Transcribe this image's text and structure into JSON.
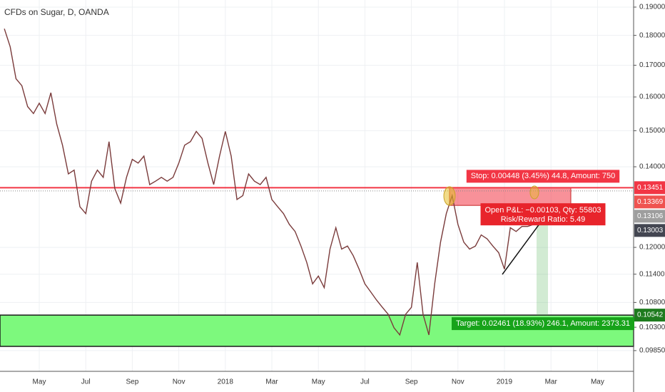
{
  "chart_data": {
    "type": "line",
    "title": "CFDs on Sugar, D, OANDA",
    "categories": [
      null,
      null,
      null,
      null,
      null,
      null,
      "May",
      null,
      null,
      null,
      null,
      null,
      null,
      null,
      "Jul",
      null,
      null,
      null,
      null,
      null,
      null,
      null,
      "Sep",
      null,
      null,
      null,
      null,
      null,
      null,
      null,
      "Nov",
      null,
      null,
      null,
      null,
      null,
      null,
      null,
      "2018",
      null,
      null,
      null,
      null,
      null,
      null,
      null,
      "Mar",
      null,
      null,
      null,
      null,
      null,
      null,
      null,
      "May",
      null,
      null,
      null,
      null,
      null,
      null,
      null,
      "Jul",
      null,
      null,
      null,
      null,
      null,
      null,
      null,
      "Sep",
      null,
      null,
      null,
      null,
      null,
      null,
      null,
      "Nov",
      null,
      null,
      null,
      null,
      null,
      null,
      null,
      "2019",
      null,
      null,
      null,
      null,
      null,
      null,
      null,
      "Mar",
      null,
      null,
      null,
      null,
      null,
      null,
      null,
      "May"
    ],
    "series": [
      {
        "color": "#7a3b3b",
        "values": [
          0.1823,
          0.1761,
          0.1657,
          0.1635,
          0.1571,
          0.155,
          0.1581,
          0.155,
          0.1613,
          0.1519,
          0.1459,
          0.1381,
          0.1391,
          0.1297,
          0.128,
          0.1362,
          0.1391,
          0.1372,
          0.1469,
          0.1343,
          0.1306,
          0.1372,
          0.142,
          0.141,
          0.1429,
          0.1353,
          0.1362,
          0.1372,
          0.1362,
          0.1372,
          0.141,
          0.1459,
          0.1469,
          0.1498,
          0.1478,
          0.141,
          0.1353,
          0.1429,
          0.1498,
          0.1429,
          0.1315,
          0.1325,
          0.1381,
          0.1362,
          0.1353,
          0.1372,
          0.1315,
          0.1297,
          0.128,
          0.1254,
          0.1237,
          0.1203,
          0.1166,
          0.1119,
          0.1136,
          0.1111,
          0.1196,
          0.1246,
          0.1196,
          0.1203,
          0.1181,
          0.1151,
          0.1119,
          0.1102,
          0.1085,
          0.107,
          0.1056,
          0.1029,
          0.1015,
          0.1056,
          0.107,
          0.1166,
          0.1056,
          0.1015,
          0.1119,
          0.1212,
          0.128,
          0.1325,
          0.1254,
          0.1212,
          0.1196,
          0.1203,
          0.1229,
          0.122,
          0.1203,
          0.1188,
          0.1151,
          0.1246,
          0.1237,
          0.1249,
          0.1249,
          0.1254,
          null,
          null,
          null,
          null,
          null,
          null,
          null,
          null,
          null,
          null,
          null
        ]
      }
    ],
    "ylim": [
      0.0948,
      0.1926
    ],
    "log_scale": true,
    "grid": true,
    "yticks": [
      {
        "value": 0.19,
        "label": "0.19000"
      },
      {
        "value": 0.18,
        "label": "0.18000"
      },
      {
        "value": 0.17,
        "label": "0.17000"
      },
      {
        "value": 0.16,
        "label": "0.16000"
      },
      {
        "value": 0.15,
        "label": "0.15000"
      },
      {
        "value": 0.14,
        "label": "0.14000"
      },
      {
        "value": 0.12,
        "label": "0.12000"
      },
      {
        "value": 0.114,
        "label": "0.11400"
      },
      {
        "value": 0.108,
        "label": "0.10800"
      },
      {
        "value": 0.103,
        "label": "0.10300"
      },
      {
        "value": 0.0985,
        "label": "0.09850"
      }
    ],
    "levels": [
      {
        "value": 0.13451,
        "color": "#f23645"
      },
      {
        "value": 0.13369,
        "color": "#ef5350"
      },
      {
        "value": 0.13106,
        "color": "#9e9e9e"
      },
      {
        "value": 0.13003,
        "color": "#434651"
      },
      {
        "value": 0.10542,
        "color": "#1e7b1e"
      }
    ],
    "support_zone_bottom": 0.0993,
    "position": {
      "stop_label": "Stop: 0.00448 (3.45%) 44.8, Amount: 750",
      "pnl_label": "Open P&L: −0.00103, Qty: 55803",
      "ratio_label": "Risk/Reward Ratio: 5.49",
      "target_label": "Target: 0.02461 (18.93%) 246.1, Amount: 2373.31"
    }
  }
}
